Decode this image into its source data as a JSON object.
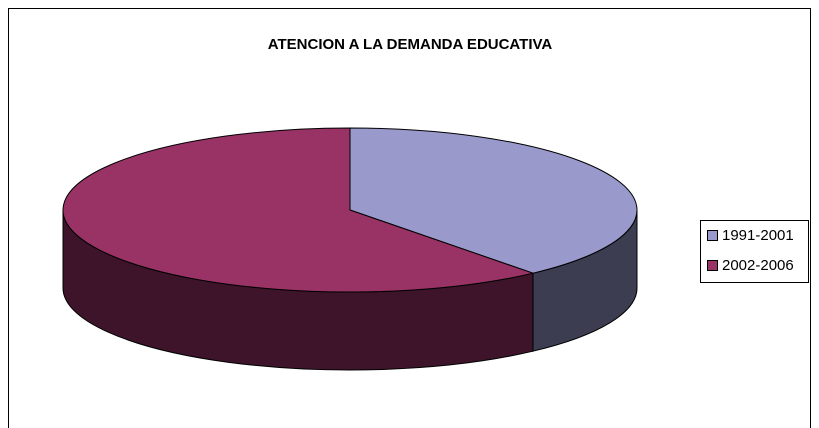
{
  "chart_data": {
    "type": "pie3d",
    "title": "ATENCION A LA DEMANDA EDUCATIVA",
    "categories": [
      "1991-2001",
      "2002-2006"
    ],
    "values": [
      39,
      61
    ],
    "colors": [
      "#9999cc",
      "#993366"
    ],
    "legend": "right"
  }
}
